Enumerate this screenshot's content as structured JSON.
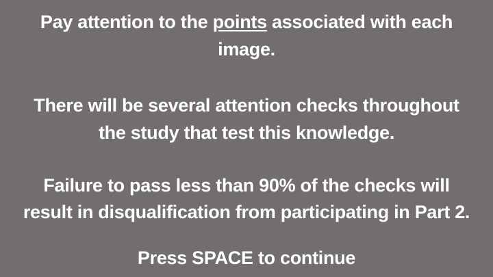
{
  "instructions": {
    "para1_line1_before": "Pay attention to the ",
    "para1_line1_emphasis": "points",
    "para1_line1_after": " associated with each",
    "para1_line2": "image.",
    "para2_line1": "There will be several attention checks throughout",
    "para2_line2": "the study that test this knowledge.",
    "para3_line1": "Failure to pass less than 90% of the checks will",
    "para3_line2": "result in disqualification from participating in Part 2.",
    "prompt": "Press SPACE to continue"
  },
  "colors": {
    "background": "#716e6d",
    "text": "#ffffff"
  }
}
